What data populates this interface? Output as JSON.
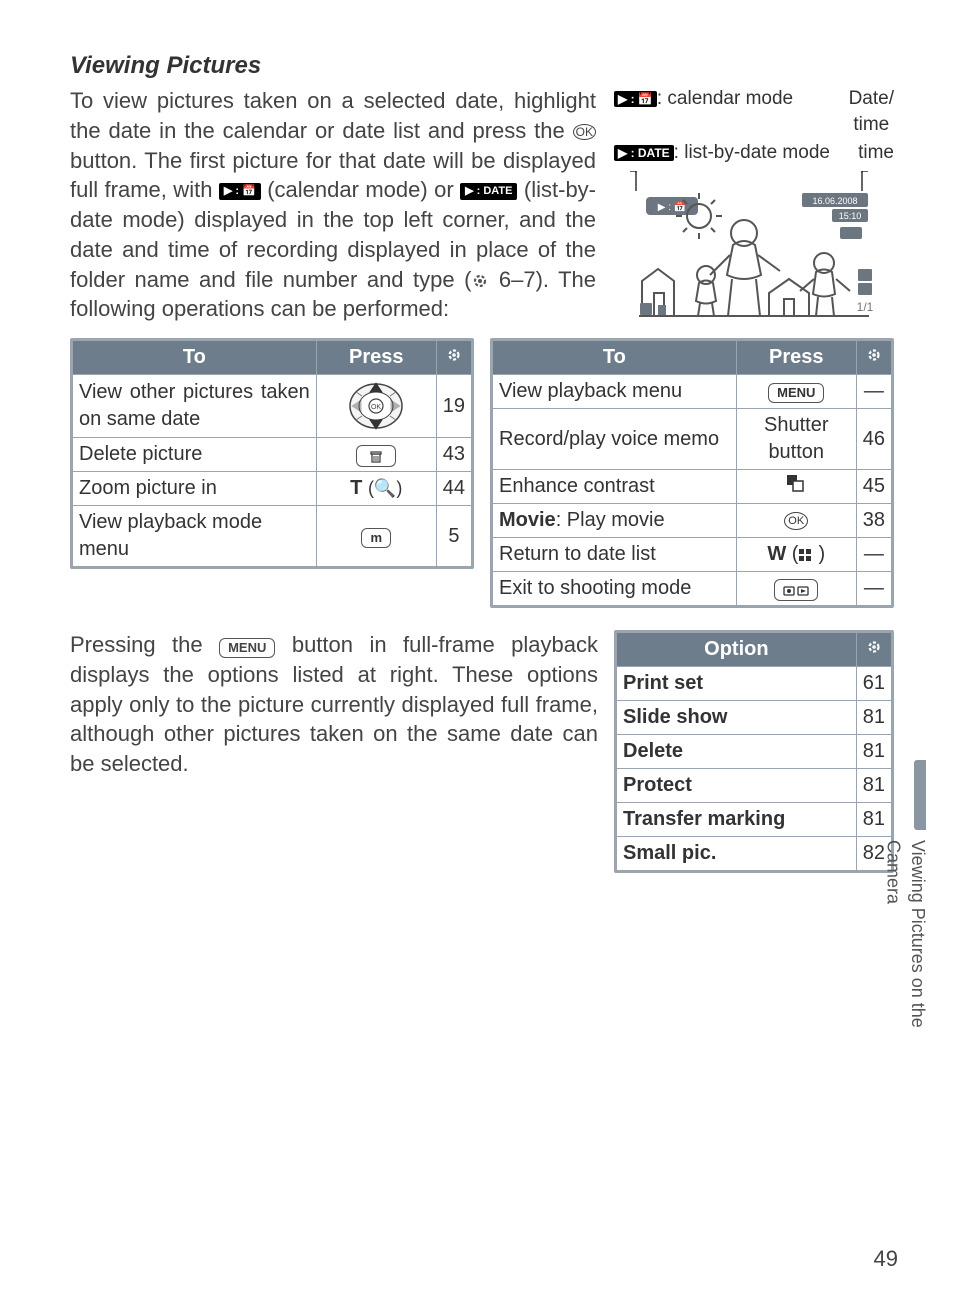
{
  "heading": "Viewing Pictures",
  "intro": {
    "part1": "To view pictures taken on a selected date, highlight the date in the calendar or date list and press the ",
    "ok_label": "OK",
    "part2": " button.  The first picture for that date will be displayed full frame, with ",
    "cal_icon_text": "▶ : 📅",
    "cal_mode_label": " (calendar mode) or ",
    "date_icon_text": "▶ : DATE",
    "list_mode_label": " (list-by-date mode) displayed in the top left corner, and the date and time of recording displayed in place of the folder name and file number and type (",
    "pageref": " 6–7).  The following operations can be performed:"
  },
  "right": {
    "cal_icon": "▶ : 📅",
    "cal_label": ": calendar mode",
    "date_icon": "▶ : DATE",
    "date_label": ": list-by-date mode",
    "datetime_label": "Date/\ntime",
    "illus_date": "16.06.2008",
    "illus_time": "15:10",
    "illus_badge": "▶ : 📅"
  },
  "table_left": {
    "headers": {
      "to": "To",
      "press": "Press",
      "ref": "⟳"
    },
    "rows": [
      {
        "to": "View other pictures taken on same date",
        "press_type": "dial",
        "ref": "19"
      },
      {
        "to": "Delete picture",
        "press_type": "trash",
        "ref": "43"
      },
      {
        "to": "Zoom picture in",
        "press_text": "T",
        "press_sub": "(🔍)",
        "press_bold": true,
        "ref": "44"
      },
      {
        "to": "View playback mode menu",
        "press_type": "btn",
        "press_text": "m",
        "ref": "5"
      }
    ]
  },
  "table_right": {
    "headers": {
      "to": "To",
      "press": "Press",
      "ref": "⟳"
    },
    "rows": [
      {
        "to": "View playback menu",
        "press_type": "btn",
        "press_text": "MENU",
        "ref": "—"
      },
      {
        "to": "Record/play voice memo",
        "press_plain": "Shutter button",
        "ref": "46"
      },
      {
        "to": "Enhance contrast",
        "press_type": "contrast",
        "ref": "45"
      },
      {
        "to_bold": "Movie",
        "to_rest": ": Play movie",
        "press_type": "ok",
        "ref": "38"
      },
      {
        "to": "Return to date list",
        "press_type": "w_thumb",
        "press_text": "W",
        "ref": "—"
      },
      {
        "to": "Exit to shooting mode",
        "press_type": "shoot_play",
        "ref": "—"
      }
    ]
  },
  "menu_note": {
    "part1": "Pressing the ",
    "btn": "MENU",
    "part2": " button in full-frame playback displays the options listed at right.  These options apply only to the picture currently displayed full frame, although other pictures taken on the same date can be selected."
  },
  "options_table": {
    "headers": {
      "option": "Option",
      "ref": "⟳"
    },
    "rows": [
      {
        "option": "Print set",
        "ref": "61"
      },
      {
        "option": "Slide show",
        "ref": "81"
      },
      {
        "option": "Delete",
        "ref": "81"
      },
      {
        "option": "Protect",
        "ref": "81"
      },
      {
        "option": "Transfer marking",
        "ref": "81"
      },
      {
        "option": "Small pic.",
        "ref": "82"
      }
    ]
  },
  "side_label": "Viewing Pictures on the Camera",
  "page_number": "49",
  "colors": {
    "header_bg": "#6d7d8b",
    "header_fg": "#ffffff",
    "border": "#9aa5af",
    "text": "#444444",
    "side_tab": "#8a97a2"
  }
}
